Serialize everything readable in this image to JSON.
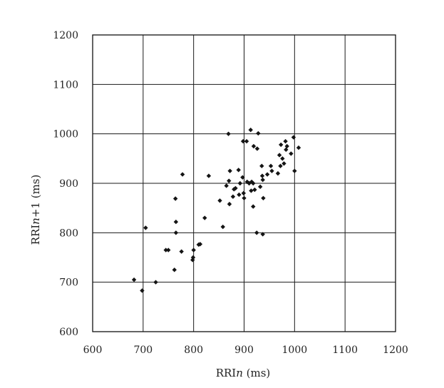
{
  "chart_data": {
    "type": "scatter",
    "title": "",
    "xlabel": "RRIn (ms)",
    "ylabel": "RRIn+1 (ms)",
    "xlabel_parts": {
      "pre": "RRI",
      "italic": "n",
      "post": " (ms)"
    },
    "ylabel_parts": {
      "pre": "RRI",
      "italic": "n",
      "post": "+1 (ms)"
    },
    "xlim": [
      600,
      1200
    ],
    "ylim": [
      600,
      1200
    ],
    "xticks": [
      600,
      700,
      800,
      900,
      1000,
      1100,
      1200
    ],
    "yticks": [
      600,
      700,
      800,
      900,
      1000,
      1100,
      1200
    ],
    "grid": true,
    "marker_color": "#141414",
    "points": [
      [
        682,
        705
      ],
      [
        698,
        683
      ],
      [
        705,
        810
      ],
      [
        725,
        700
      ],
      [
        745,
        765
      ],
      [
        750,
        765
      ],
      [
        762,
        725
      ],
      [
        764,
        869
      ],
      [
        765,
        822
      ],
      [
        765,
        800
      ],
      [
        776,
        762
      ],
      [
        778,
        918
      ],
      [
        798,
        745
      ],
      [
        799,
        750
      ],
      [
        800,
        765
      ],
      [
        810,
        776
      ],
      [
        813,
        777
      ],
      [
        822,
        830
      ],
      [
        830,
        915
      ],
      [
        852,
        865
      ],
      [
        858,
        812
      ],
      [
        865,
        895
      ],
      [
        869,
        1000
      ],
      [
        870,
        905
      ],
      [
        871,
        858
      ],
      [
        872,
        925
      ],
      [
        878,
        873
      ],
      [
        880,
        888
      ],
      [
        883,
        890
      ],
      [
        889,
        927
      ],
      [
        890,
        877
      ],
      [
        892,
        900
      ],
      [
        897,
        912
      ],
      [
        898,
        985
      ],
      [
        899,
        880
      ],
      [
        900,
        870
      ],
      [
        905,
        985
      ],
      [
        906,
        903
      ],
      [
        910,
        900
      ],
      [
        913,
        1008
      ],
      [
        914,
        885
      ],
      [
        915,
        903
      ],
      [
        918,
        900
      ],
      [
        918,
        853
      ],
      [
        919,
        975
      ],
      [
        921,
        887
      ],
      [
        925,
        800
      ],
      [
        926,
        970
      ],
      [
        928,
        1001
      ],
      [
        932,
        893
      ],
      [
        935,
        935
      ],
      [
        936,
        915
      ],
      [
        937,
        907
      ],
      [
        937,
        797
      ],
      [
        938,
        870
      ],
      [
        946,
        918
      ],
      [
        953,
        935
      ],
      [
        955,
        925
      ],
      [
        967,
        920
      ],
      [
        970,
        957
      ],
      [
        972,
        935
      ],
      [
        973,
        978
      ],
      [
        976,
        950
      ],
      [
        979,
        940
      ],
      [
        982,
        985
      ],
      [
        983,
        968
      ],
      [
        985,
        975
      ],
      [
        993,
        960
      ],
      [
        998,
        993
      ],
      [
        1000,
        925
      ],
      [
        1008,
        972
      ]
    ]
  }
}
